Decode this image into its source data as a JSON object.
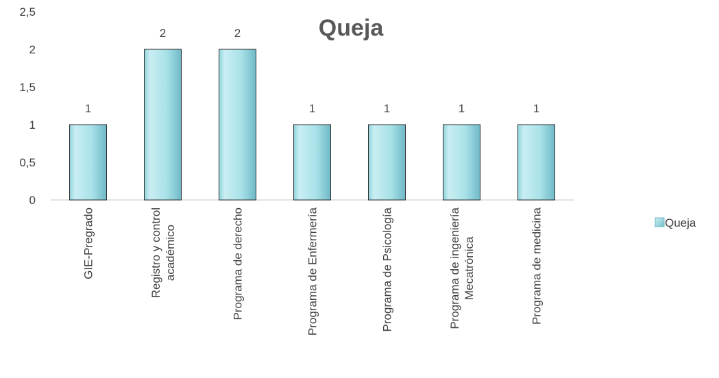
{
  "chart_data": {
    "type": "bar",
    "title": "Queja",
    "categories": [
      [
        "GIE-Pregrado"
      ],
      [
        "Registro y control",
        "académico"
      ],
      [
        "Programa de derecho"
      ],
      [
        "Programa de Enfermería"
      ],
      [
        "Programa de Psicología"
      ],
      [
        "Programa de ingeniería",
        "Mecatrónica"
      ],
      [
        "Programa de medicina"
      ]
    ],
    "series": [
      {
        "name": "Queja",
        "values": [
          1,
          2,
          2,
          1,
          1,
          1,
          1
        ]
      }
    ],
    "data_labels": [
      "1",
      "2",
      "2",
      "1",
      "1",
      "1",
      "1"
    ],
    "ylim": [
      0,
      2.5
    ],
    "yticks": [
      "0",
      "0,5",
      "1",
      "1,5",
      "2",
      "2,5"
    ],
    "grid": false,
    "legend_position": "right",
    "colors": {
      "bar_fill_light": "#c9eef2",
      "bar_fill_mid": "#9fdde5",
      "bar_fill_dark": "#79c3cf",
      "bar_stroke": "#2d2d2d",
      "axis": "#d9d9d9",
      "text": "#404040"
    }
  }
}
